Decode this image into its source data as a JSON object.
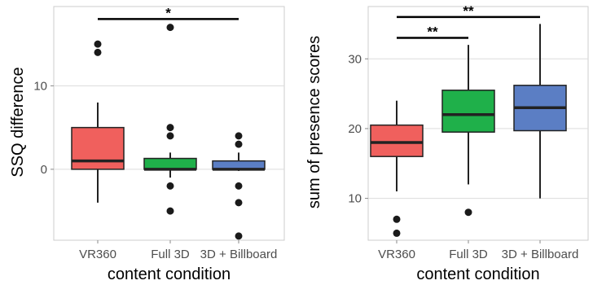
{
  "chart_data": [
    {
      "type": "box",
      "categories": [
        "VR360",
        "Full 3D",
        "3D + Billboard"
      ],
      "colors": [
        "#f0605d",
        "#1fb04a",
        "#5b7ec4"
      ],
      "xlabel": "content condition",
      "ylabel": "SSQ difference",
      "ylim": [
        -8.5,
        19.5
      ],
      "yticks": [
        0,
        10
      ],
      "grid": true,
      "boxes": [
        {
          "category": "VR360",
          "whisker_low": -4,
          "q1": 0,
          "median": 1,
          "q3": 5,
          "whisker_high": 8,
          "outliers": [
            14,
            15
          ]
        },
        {
          "category": "Full 3D",
          "whisker_low": -1,
          "q1": 0,
          "median": 0,
          "q3": 1.3,
          "whisker_high": 2,
          "outliers": [
            17,
            5,
            4,
            -2,
            -5
          ]
        },
        {
          "category": "3D + Billboard",
          "whisker_low": -0.2,
          "q1": 0,
          "median": 0,
          "q3": 1,
          "whisker_high": 2,
          "outliers": [
            4,
            3,
            -2,
            -4,
            -8
          ]
        }
      ],
      "significance": [
        {
          "from": "VR360",
          "to": "3D + Billboard",
          "label": "*",
          "y": 18
        }
      ]
    },
    {
      "type": "box",
      "categories": [
        "VR360",
        "Full 3D",
        "3D + Billboard"
      ],
      "colors": [
        "#f0605d",
        "#1fb04a",
        "#5b7ec4"
      ],
      "xlabel": "content condition",
      "ylabel": "sum of presence scores",
      "ylim": [
        4,
        37.5
      ],
      "yticks": [
        10,
        20,
        30
      ],
      "grid": true,
      "boxes": [
        {
          "category": "VR360",
          "whisker_low": 11,
          "q1": 16,
          "median": 18,
          "q3": 20.5,
          "whisker_high": 24,
          "outliers": [
            7,
            5
          ]
        },
        {
          "category": "Full 3D",
          "whisker_low": 12,
          "q1": 19.5,
          "median": 22,
          "q3": 25.5,
          "whisker_high": 32,
          "outliers": [
            8
          ]
        },
        {
          "category": "3D + Billboard",
          "whisker_low": 10,
          "q1": 19.7,
          "median": 23,
          "q3": 26.2,
          "whisker_high": 35,
          "outliers": []
        }
      ],
      "significance": [
        {
          "from": "VR360",
          "to": "Full 3D",
          "label": "**",
          "y": 33
        },
        {
          "from": "VR360",
          "to": "3D + Billboard",
          "label": "**",
          "y": 36
        }
      ]
    }
  ]
}
